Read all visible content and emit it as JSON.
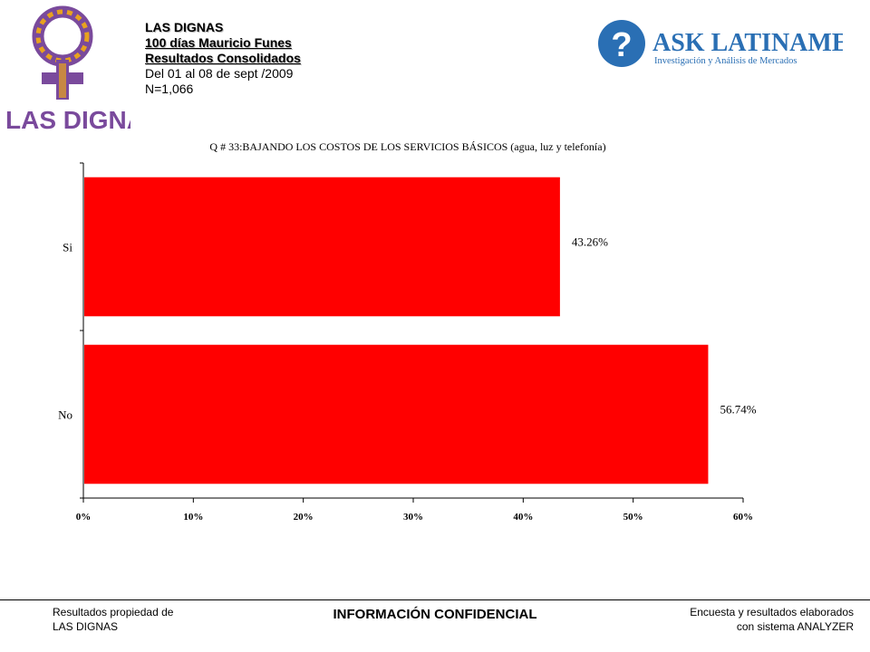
{
  "header": {
    "line1": "LAS DIGNAS",
    "line2": "100 días Mauricio Funes",
    "line3": "Resultados Consolidados",
    "line4": "Del 01 al 08 de sept /2009",
    "line5": "N=1,066"
  },
  "logo_left": {
    "text": "LAS DIGNAS"
  },
  "logo_right": {
    "brand": "ASK LATINAMERICA",
    "tagline": "Investigación y Análisis de Mercados"
  },
  "colors": {
    "bar": "#ff0000",
    "brand_blue": "#2a6fb4",
    "logo_purple": "#7a4a9c"
  },
  "chart_data": {
    "type": "bar",
    "orientation": "horizontal",
    "title": "Q # 33:BAJANDO LOS COSTOS DE LOS SERVICIOS BÁSICOS (agua, luz y telefonía)",
    "categories": [
      "Si",
      "No"
    ],
    "values": [
      43.26,
      56.74
    ],
    "value_labels": [
      "43.26%",
      "56.74%"
    ],
    "xlim": [
      0,
      60
    ],
    "ticks": [
      "0%",
      "10%",
      "20%",
      "30%",
      "40%",
      "50%",
      "60%"
    ],
    "grid": false,
    "legend": "none"
  },
  "footer": {
    "left1": "Resultados propiedad de",
    "left2": "LAS DIGNAS",
    "center": "INFORMACIÓN CONFIDENCIAL",
    "right1": "Encuesta y resultados elaborados",
    "right2": "con sistema ANALYZER"
  }
}
